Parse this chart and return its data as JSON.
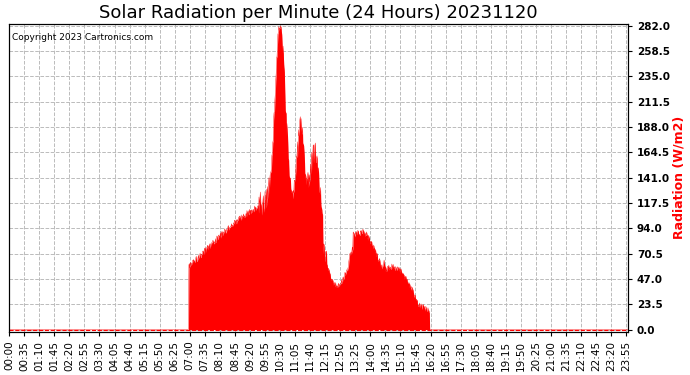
{
  "title": "Solar Radiation per Minute (24 Hours) 20231120",
  "copyright_text": "Copyright 2023 Cartronics.com",
  "ylabel": "Radiation (W/m2)",
  "ylabel_color": "#FF0000",
  "background_color": "#ffffff",
  "fill_color": "#FF0000",
  "line_color": "#FF0000",
  "grid_color": "#bbbbbb",
  "ylim": [
    0.0,
    282.0
  ],
  "yticks": [
    0.0,
    23.5,
    47.0,
    70.5,
    94.0,
    117.5,
    141.0,
    164.5,
    188.0,
    211.5,
    235.0,
    258.5,
    282.0
  ],
  "num_minutes": 1440,
  "title_fontsize": 13,
  "tick_fontsize": 7.5,
  "figsize": [
    6.9,
    3.75
  ],
  "dpi": 100
}
